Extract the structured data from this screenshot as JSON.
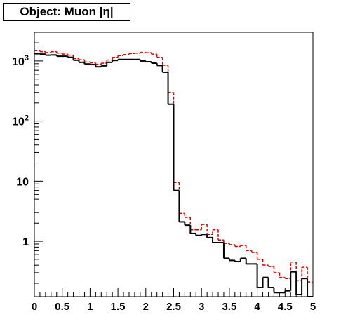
{
  "chart_data": {
    "type": "line",
    "title": "Object: Muon |η|",
    "xlabel": "",
    "ylabel": "",
    "x_scale": "linear",
    "y_scale": "log",
    "xlim": [
      0,
      5
    ],
    "ylim": [
      0.12,
      3000
    ],
    "grid": false,
    "legend": "none",
    "x_ticks": [
      {
        "v": 0,
        "label": "0"
      },
      {
        "v": 0.5,
        "label": "0.5"
      },
      {
        "v": 1,
        "label": "1"
      },
      {
        "v": 1.5,
        "label": "1.5"
      },
      {
        "v": 2,
        "label": "2"
      },
      {
        "v": 2.5,
        "label": "2.5"
      },
      {
        "v": 3,
        "label": "3"
      },
      {
        "v": 3.5,
        "label": "3.5"
      },
      {
        "v": 4,
        "label": "4"
      },
      {
        "v": 4.5,
        "label": "4.5"
      },
      {
        "v": 5,
        "label": "5"
      }
    ],
    "y_ticks": [
      {
        "v": 1,
        "label": "1"
      },
      {
        "v": 10,
        "label": "10"
      },
      {
        "v": 100,
        "label": "10^2"
      },
      {
        "v": 1000,
        "label": "10^3"
      }
    ],
    "bin_edges_start": 0,
    "bin_width": 0.1,
    "series": [
      {
        "color": "#000000",
        "style": "solid",
        "values": [
          1320,
          1300,
          1250,
          1260,
          1200,
          1200,
          1150,
          1030,
          950,
          890,
          870,
          800,
          830,
          950,
          1020,
          1060,
          1060,
          1060,
          1060,
          1000,
          970,
          920,
          840,
          650,
          190,
          7,
          2.1,
          1.85,
          1.35,
          1.25,
          1.3,
          1.15,
          0.95,
          0.95,
          0.52,
          0.48,
          0.46,
          0.52,
          0.42,
          0.42,
          0.17,
          0.25,
          0.17,
          0.14,
          0.14,
          0.15,
          0.31,
          0.13,
          0.24,
          0.1
        ]
      },
      {
        "color": "#e00000",
        "style": "dashed",
        "values": [
          1480,
          1430,
          1380,
          1430,
          1350,
          1300,
          1250,
          1100,
          1050,
          960,
          930,
          880,
          920,
          1040,
          1150,
          1230,
          1280,
          1330,
          1350,
          1390,
          1370,
          1300,
          1150,
          850,
          300,
          9.5,
          2.9,
          2.5,
          1.55,
          1.55,
          1.9,
          1.3,
          1.55,
          1.05,
          0.92,
          0.88,
          0.82,
          0.85,
          0.7,
          0.65,
          0.5,
          0.4,
          0.38,
          0.3,
          0.25,
          0.24,
          0.45,
          0.22,
          0.37,
          0.21
        ]
      }
    ]
  }
}
